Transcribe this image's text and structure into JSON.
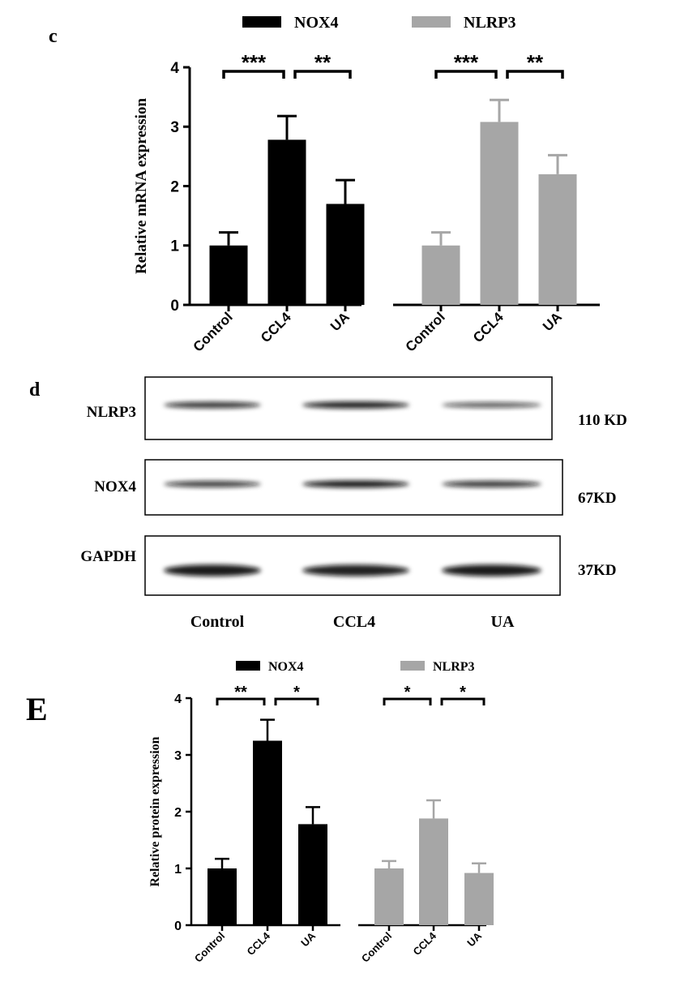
{
  "panel_c_label": "c",
  "panel_d_label": "d",
  "panel_e_label": "E",
  "colors": {
    "nox4": "#000000",
    "nlrp3": "#a6a6a6",
    "axis": "#000000"
  },
  "chart_data": [
    {
      "type": "bar",
      "panel": "c",
      "ylabel": "Relative mRNA expression",
      "ylim": [
        0,
        4
      ],
      "yticks": [
        "0",
        "1",
        "2",
        "3",
        "4"
      ],
      "legend": [
        "NOX4",
        "NLRP3"
      ],
      "legend_position": "top",
      "groups": [
        {
          "name": "NOX4",
          "color": "#000000",
          "categories": [
            "Control",
            "CCL4",
            "UA"
          ],
          "values": [
            1.0,
            2.78,
            1.7
          ],
          "errors": [
            0.22,
            0.4,
            0.4
          ]
        },
        {
          "name": "NLRP3",
          "color": "#a6a6a6",
          "categories": [
            "Control",
            "CCL4",
            "UA"
          ],
          "values": [
            1.0,
            3.08,
            2.2
          ],
          "errors": [
            0.22,
            0.37,
            0.32
          ]
        }
      ],
      "significance": [
        {
          "group": 0,
          "from": 0,
          "to": 1,
          "label": "***"
        },
        {
          "group": 0,
          "from": 1,
          "to": 2,
          "label": "**"
        },
        {
          "group": 1,
          "from": 0,
          "to": 1,
          "label": "***"
        },
        {
          "group": 1,
          "from": 1,
          "to": 2,
          "label": "**"
        }
      ]
    },
    {
      "type": "bar",
      "panel": "E",
      "ylabel": "Relative  protein expression",
      "ylim": [
        0,
        4
      ],
      "yticks": [
        "0",
        "1",
        "2",
        "3",
        "4"
      ],
      "legend": [
        "NOX4",
        "NLRP3"
      ],
      "legend_position": "top",
      "groups": [
        {
          "name": "NOX4",
          "color": "#000000",
          "categories": [
            "Control",
            "CCL4",
            "UA"
          ],
          "values": [
            1.0,
            3.25,
            1.78
          ],
          "errors": [
            0.17,
            0.37,
            0.3
          ]
        },
        {
          "name": "NLRP3",
          "color": "#a6a6a6",
          "categories": [
            "Control",
            "CCL4",
            "UA"
          ],
          "values": [
            1.0,
            1.88,
            0.92
          ],
          "errors": [
            0.13,
            0.32,
            0.17
          ]
        }
      ],
      "significance": [
        {
          "group": 0,
          "from": 0,
          "to": 1,
          "label": "**"
        },
        {
          "group": 0,
          "from": 1,
          "to": 2,
          "label": "*"
        },
        {
          "group": 1,
          "from": 0,
          "to": 1,
          "label": "*"
        },
        {
          "group": 1,
          "from": 1,
          "to": 2,
          "label": "*"
        }
      ]
    }
  ],
  "western_blot": {
    "rows": [
      {
        "protein": "NLRP3",
        "size": "110 KD",
        "intensities": [
          0.8,
          0.95,
          0.55
        ]
      },
      {
        "protein": "NOX4",
        "size": "67KD",
        "intensities": [
          0.75,
          1.0,
          0.8
        ]
      },
      {
        "protein": "GAPDH",
        "size": "37KD",
        "intensities": [
          1.0,
          0.95,
          1.0
        ]
      }
    ],
    "lanes": [
      "Control",
      "CCL4",
      "UA"
    ]
  }
}
